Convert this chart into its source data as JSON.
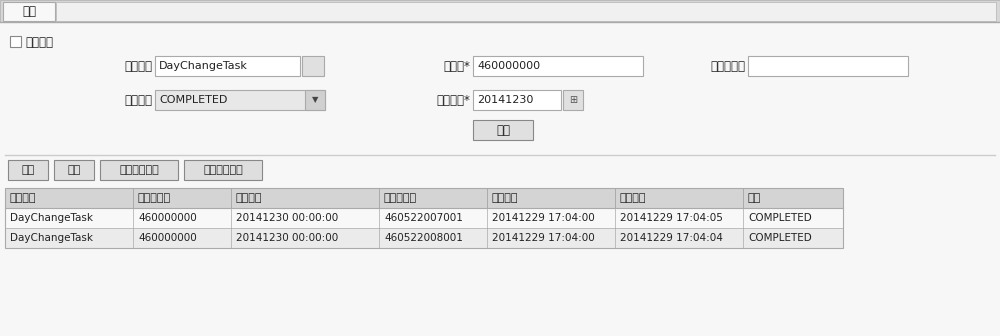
{
  "bg_color": "#f2f2f2",
  "title_tab": "监控",
  "auto_refresh_label": "自动刺新",
  "row1_labels": [
    "任务名称",
    "分行号*",
    "委托人编号"
  ],
  "row1_values": [
    "DayChangeTask",
    "460000000",
    ""
  ],
  "row2_labels": [
    "任务状态",
    "账务日期*"
  ],
  "row2_values": [
    "COMPLETED",
    "20141230"
  ],
  "query_btn": "查询",
  "action_btns": [
    "干预",
    "转移",
    "查询异常信息",
    "查询历过信息"
  ],
  "table_headers": [
    "任务名称",
    "一级分行号",
    "账务日期",
    "委托人分行",
    "任务开始",
    "任务结束",
    "状态"
  ],
  "table_rows": [
    [
      "DayChangeTask",
      "460000000",
      "20141230 00:00:00",
      "460522007001",
      "20141229 17:04:00",
      "20141229 17:04:05",
      "COMPLETED"
    ],
    [
      "DayChangeTask",
      "460000000",
      "20141230 00:00:00",
      "460522008001",
      "20141229 17:04:00",
      "20141229 17:04:04",
      "COMPLETED"
    ]
  ],
  "header_bg": "#d4d4d4",
  "row_bg_odd": "#f8f8f8",
  "row_bg_even": "#ebebeb",
  "border_color": "#aaaaaa",
  "text_color": "#222222",
  "input_bg": "#ffffff",
  "btn_bg": "#dedede",
  "tab_active_bg": "#f8f8f8",
  "tab_bar_bg": "#d8d8d8",
  "main_bg": "#f7f7f7",
  "separator_color": "#cccccc"
}
